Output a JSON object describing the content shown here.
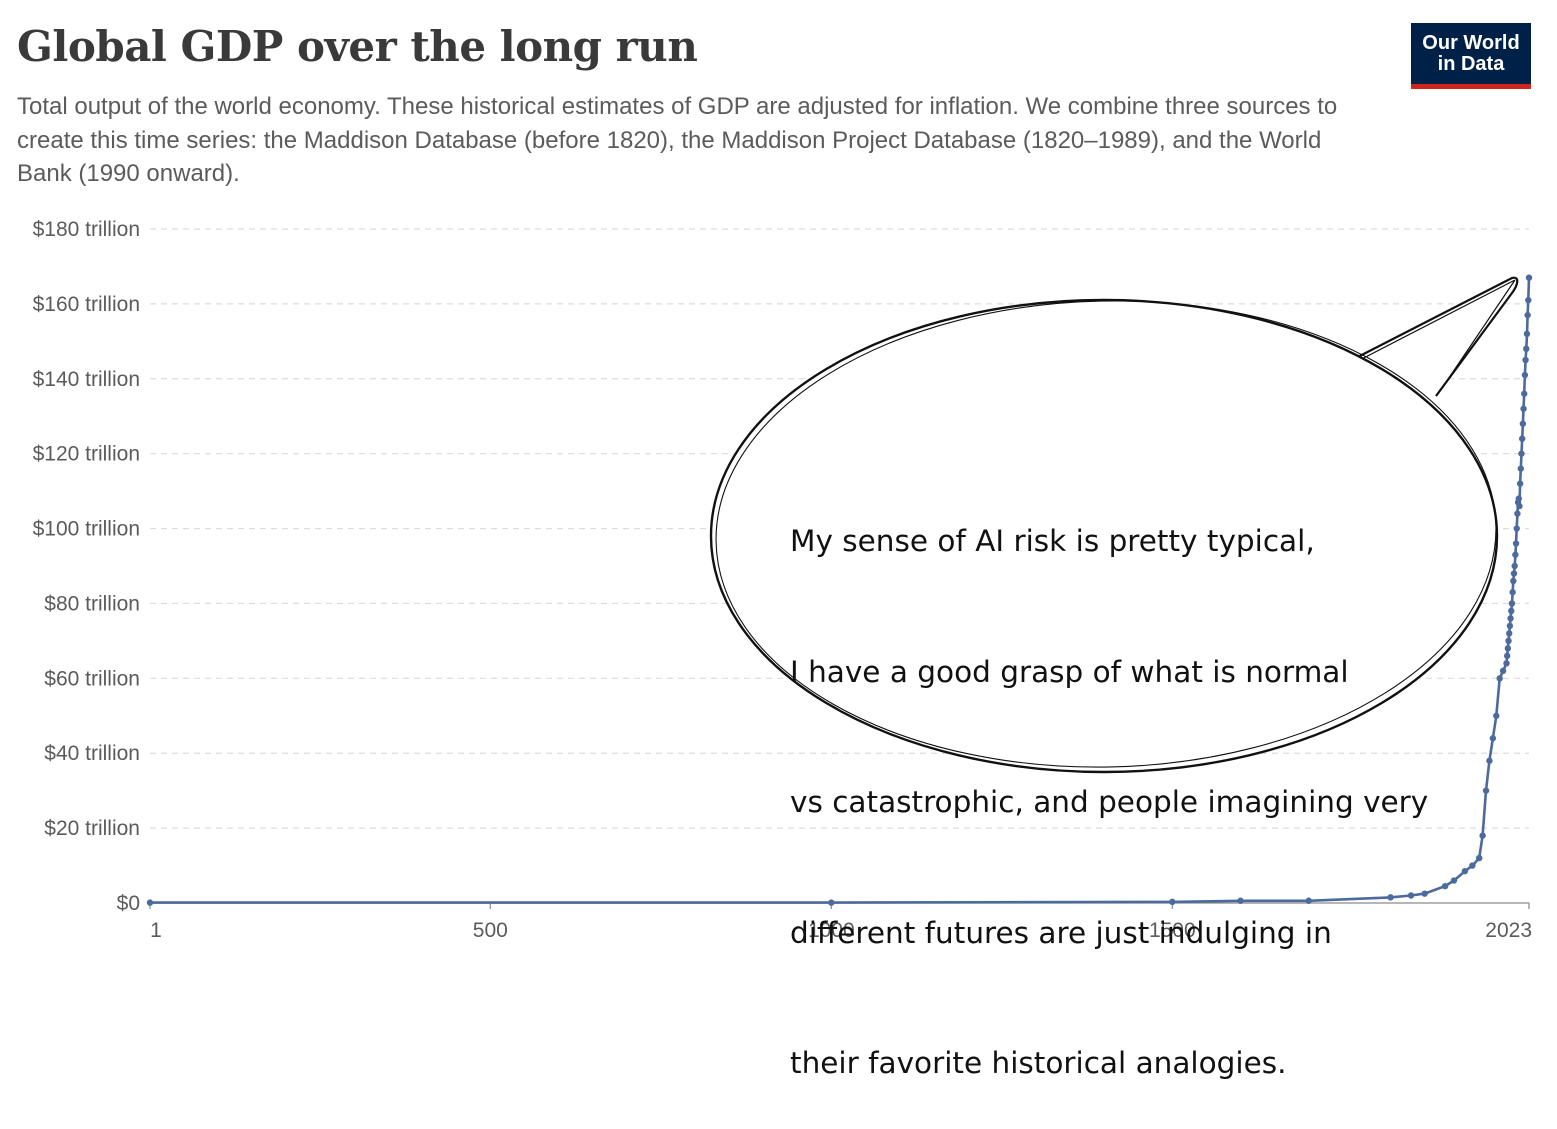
{
  "header": {
    "title": "Global GDP over the long run",
    "subtitle": "Total output of the world economy. These historical estimates of GDP are adjusted for inflation. We combine three sources to create this time series: the Maddison Database (before 1820), the Maddison Project Database (1820–1989), and the World Bank (1990 onward)."
  },
  "logo": {
    "line1": "Our World",
    "line2": "in Data",
    "bg_color": "#002147",
    "accent_color": "#ce261e"
  },
  "speech_bubble": {
    "lines": [
      "My sense of AI risk is pretty typical,",
      "I have a good grasp of what is normal",
      "vs catastrophic, and people imagining very",
      "different futures are just indulging in",
      "their favorite historical analogies."
    ]
  },
  "chart_data": {
    "type": "line",
    "x_tick_labels": [
      "1",
      "500",
      "1000",
      "1500",
      "2023"
    ],
    "x_ticks": [
      1,
      500,
      1000,
      1500,
      2023
    ],
    "y_tick_labels": [
      "$0",
      "$20 trillion",
      "$40 trillion",
      "$60 trillion",
      "$80 trillion",
      "$100 trillion",
      "$120 trillion",
      "$140 trillion",
      "$160 trillion",
      "$180 trillion"
    ],
    "y_ticks": [
      0,
      20,
      40,
      60,
      80,
      100,
      120,
      140,
      160,
      180
    ],
    "xlim": [
      1,
      2023
    ],
    "ylim": [
      0,
      180
    ],
    "grid": "horizontal dashed",
    "line_color": "#4c6a9c",
    "series": [
      {
        "x": [
          1,
          1000,
          1500,
          1600,
          1700,
          1820,
          1850,
          1870,
          1900,
          1913,
          1929,
          1940,
          1950,
          1955,
          1960,
          1965,
          1970,
          1975,
          1980,
          1985,
          1990,
          1991,
          1992,
          1993,
          1994,
          1995,
          1996,
          1997,
          1998,
          1999,
          2000,
          2001,
          2002,
          2003,
          2004,
          2005,
          2006,
          2007,
          2008,
          2009,
          2010,
          2011,
          2012,
          2013,
          2014,
          2015,
          2016,
          2017,
          2018,
          2019,
          2020,
          2021,
          2022,
          2023
        ],
        "values": [
          0.1,
          0.1,
          0.3,
          0.6,
          0.6,
          1.5,
          2.0,
          2.5,
          4.5,
          6.0,
          8.5,
          10.0,
          12.0,
          18.0,
          30.0,
          38.0,
          44.0,
          50.0,
          60.0,
          62.0,
          64.0,
          66.0,
          68.0,
          70.0,
          72.0,
          74.0,
          76.0,
          78.0,
          80.0,
          83.0,
          86.0,
          88.0,
          90.0,
          93.0,
          96.0,
          100.0,
          104.0,
          107.0,
          108.0,
          106.0,
          112.0,
          116.0,
          120.0,
          124.0,
          128.0,
          132.0,
          136.0,
          141.0,
          145.0,
          148.0,
          152.0,
          157.0,
          161.0,
          167.0
        ]
      }
    ]
  }
}
